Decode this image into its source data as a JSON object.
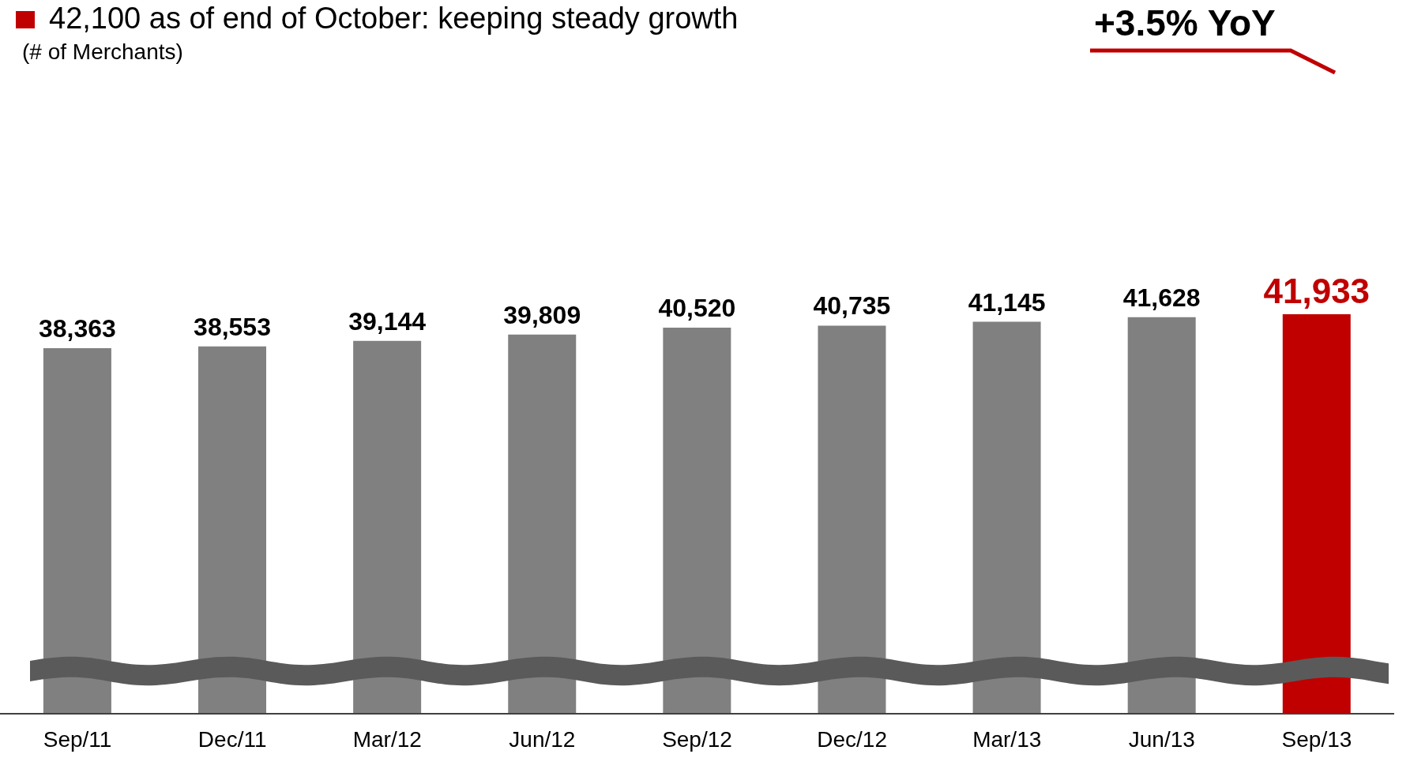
{
  "chart_data": {
    "type": "bar",
    "title": "42,100 as of end of October: keeping steady growth",
    "subtitle": "(# of Merchants)",
    "categories": [
      "Sep/11",
      "Dec/11",
      "Mar/12",
      "Jun/12",
      "Sep/12",
      "Dec/12",
      "Mar/13",
      "Jun/13",
      "Sep/13"
    ],
    "values": [
      38363,
      38553,
      39144,
      39809,
      40520,
      40735,
      41145,
      41628,
      41933
    ],
    "value_labels": [
      "38,363",
      "38,553",
      "39,144",
      "39,809",
      "40,520",
      "40,735",
      "41,145",
      "41,628",
      "41,933"
    ],
    "colors": [
      "#808080",
      "#808080",
      "#808080",
      "#808080",
      "#808080",
      "#808080",
      "#808080",
      "#808080",
      "#c00000"
    ],
    "tick_labels": "x",
    "annotations": [
      "+3.5% YoY"
    ]
  }
}
